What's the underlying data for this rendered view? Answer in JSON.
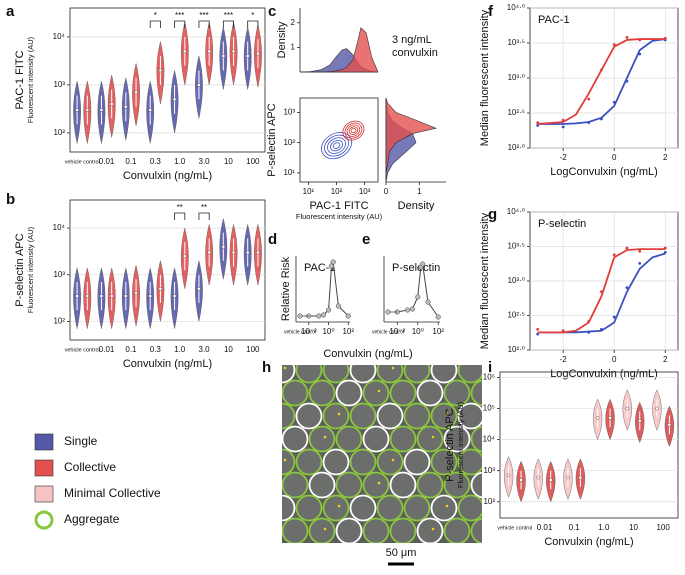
{
  "panel_letters": [
    "a",
    "b",
    "c",
    "d",
    "e",
    "f",
    "g",
    "h",
    "i"
  ],
  "legend": [
    {
      "name": "Single",
      "color": "#5558a8",
      "marker": "square"
    },
    {
      "name": "Collective",
      "color": "#e34f4f",
      "marker": "square"
    },
    {
      "name": "Minimal Collective",
      "color": "#f6c3c3",
      "marker": "square"
    },
    {
      "name": "Aggregate",
      "color": "#8cc63f",
      "marker": "ring"
    }
  ],
  "micrograph": {
    "scale_label": "50 μm"
  },
  "chart_data": [
    {
      "type": "violin",
      "ylabel": "PAC-1 FITC",
      "ysub": "Fluorescent intensity (AU)",
      "xlabel": "Convulxin (ng/mL)",
      "categories": [
        "vehicle control",
        "0.01",
        "0.1",
        "0.3",
        "1.0",
        "3.0",
        "10",
        "100"
      ],
      "series": [
        {
          "name": "Single",
          "color": "#5558a8",
          "values": [
            300,
            300,
            350,
            300,
            500,
            1000,
            4000,
            4000
          ]
        },
        {
          "name": "Collective",
          "color": "#e34f4f",
          "values": [
            300,
            400,
            700,
            2000,
            5000,
            5000,
            5000,
            4500
          ]
        }
      ],
      "ylog": true,
      "ylim": [
        40,
        40000
      ],
      "grid": true,
      "yticks": [
        {
          "value": 100,
          "label": "10²"
        },
        {
          "value": 1000,
          "label": "10³"
        },
        {
          "value": 10000,
          "label": "10⁴"
        }
      ],
      "annotations": [
        {
          "category": "0.3",
          "label": "*"
        },
        {
          "category": "1.0",
          "label": "***"
        },
        {
          "category": "3.0",
          "label": "***"
        },
        {
          "category": "10",
          "label": "***"
        },
        {
          "category": "100",
          "label": "*"
        }
      ]
    },
    {
      "type": "violin",
      "ylabel": "P-selectin APC",
      "ysub": "Fluorescent intensity (AU)",
      "xlabel": "Convulxin (ng/mL)",
      "categories": [
        "vehicle control",
        "0.01",
        "0.1",
        "0.3",
        "1.0",
        "3.0",
        "10",
        "100"
      ],
      "series": [
        {
          "name": "Single",
          "color": "#5558a8",
          "values": [
            350,
            350,
            350,
            350,
            350,
            500,
            4000,
            3000
          ]
        },
        {
          "name": "Collective",
          "color": "#e34f4f",
          "values": [
            350,
            350,
            400,
            500,
            2500,
            3000,
            3000,
            3000
          ]
        }
      ],
      "ylog": true,
      "ylim": [
        40,
        40000
      ],
      "grid": true,
      "yticks": [
        {
          "value": 100,
          "label": "10²"
        },
        {
          "value": 1000,
          "label": "10³"
        },
        {
          "value": 10000,
          "label": "10⁴"
        }
      ],
      "annotations": [
        {
          "category": "1.0",
          "label": "**"
        },
        {
          "category": "3.0",
          "label": "**"
        }
      ]
    },
    {
      "type": "density",
      "ylabel": "Density",
      "annotation": [
        "3 ng/mL",
        "convulxin"
      ],
      "x": [
        10,
        20,
        40,
        70,
        100,
        150,
        200,
        300,
        400,
        500,
        700,
        1000,
        1500
      ],
      "xlog": true,
      "xlim": [
        10,
        1500
      ],
      "ylim": [
        0,
        2.6
      ],
      "yticks": [
        1,
        2
      ],
      "series": [
        {
          "color": "#5558a8",
          "values": [
            0,
            0.02,
            0.1,
            0.3,
            0.6,
            0.9,
            0.95,
            0.7,
            0.4,
            0.2,
            0.1,
            0.03,
            0
          ]
        },
        {
          "color": "#e34f4f",
          "values": [
            0,
            0,
            0,
            0.02,
            0.05,
            0.1,
            0.2,
            0.5,
            1.2,
            1.8,
            1.6,
            0.6,
            0
          ]
        }
      ]
    },
    {
      "type": "contour",
      "ylabel": "P-selectin APC",
      "xlabel": "PAC-1 FITC",
      "xsub": "Fluorescent intensity (AU)",
      "xlog": true,
      "ylog": true,
      "xlim": [
        5,
        3000
      ],
      "ylim": [
        5,
        3000
      ],
      "xticks": [
        {
          "value": 10,
          "label": "10¹"
        },
        {
          "value": 100,
          "label": "10²"
        },
        {
          "value": 1000,
          "label": "10³"
        }
      ],
      "yticks": [
        {
          "value": 10,
          "label": "10¹"
        },
        {
          "value": 100,
          "label": "10²"
        },
        {
          "value": 1000,
          "label": "10³"
        }
      ],
      "series": [
        {
          "color": "#3a4fc0",
          "center": [
            100,
            80
          ]
        },
        {
          "color": "#d62f2f",
          "center": [
            400,
            250
          ]
        }
      ]
    },
    {
      "type": "density-h",
      "xlabel": "Density",
      "y": [
        5,
        10,
        20,
        50,
        100,
        200,
        300,
        500,
        1000,
        2000,
        3000
      ],
      "ylog": true,
      "ylim": [
        5,
        3000
      ],
      "xlim": [
        0,
        1.8
      ],
      "xticks": [
        0,
        1
      ],
      "series": [
        {
          "color": "#5558a8",
          "values": [
            0,
            0.05,
            0.2,
            0.6,
            0.9,
            0.8,
            0.5,
            0.2,
            0.05,
            0.01,
            0
          ]
        },
        {
          "color": "#e34f4f",
          "values": [
            0,
            0,
            0.05,
            0.1,
            0.3,
            0.8,
            1.5,
            1.0,
            0.3,
            0.05,
            0
          ]
        }
      ]
    },
    {
      "type": "line",
      "label": "PAC-1",
      "ylabel": "Relative Risk",
      "xlabel": "Convulxin (ng/mL)",
      "control_label": "vehicle control",
      "control_value": 3,
      "x": [
        0.01,
        0.1,
        0.3,
        1,
        2,
        3,
        10,
        100
      ],
      "values": [
        3,
        3,
        3.5,
        6,
        28,
        30,
        8,
        3
      ],
      "xlog": true,
      "xlim": [
        0.0005,
        150
      ],
      "ylim": [
        0,
        33
      ],
      "color": "#444444",
      "xticks": [
        {
          "value": 0.01,
          "label": "10⁻²"
        },
        {
          "value": 1,
          "label": "10⁰"
        },
        {
          "value": 100,
          "label": "10²"
        }
      ]
    },
    {
      "type": "line",
      "label": "P-selectin",
      "control_label": "vehicle control",
      "control_value": 1,
      "x": [
        0.01,
        0.1,
        0.3,
        1,
        2,
        3,
        10,
        100
      ],
      "values": [
        1,
        1.2,
        1.3,
        2.5,
        5.5,
        5.8,
        2,
        0.5
      ],
      "xlog": true,
      "xlim": [
        0.0005,
        150
      ],
      "ylim": [
        0,
        6.6
      ],
      "color": "#444444",
      "xticks": [
        {
          "value": 0.01,
          "label": "10⁻²"
        },
        {
          "value": 1,
          "label": "10⁰"
        },
        {
          "value": 100,
          "label": "10²"
        }
      ]
    },
    {
      "type": "curve",
      "label": "PAC-1",
      "ylabel": "Median fluorescent intensity",
      "xlabel": "LogConvulxin (ng/mL)",
      "x": [
        -3,
        -2,
        -1.5,
        -1,
        -0.5,
        0,
        0.5,
        1,
        1.5,
        2
      ],
      "ylog": true,
      "ylim": [
        100,
        10000
      ],
      "xlim": [
        -3.3,
        2.5
      ],
      "xticks": [
        -2,
        0,
        2
      ],
      "grid": true,
      "yticks": [
        {
          "value": 100,
          "label": "10²·⁰"
        },
        {
          "value": 316.2,
          "label": "10²·⁵"
        },
        {
          "value": 1000,
          "label": "10³·⁰"
        },
        {
          "value": 3162,
          "label": "10³·⁵"
        },
        {
          "value": 10000,
          "label": "10⁴·⁰"
        }
      ],
      "series": [
        {
          "color": "#3a4fc0",
          "values": [
            220,
            220,
            225,
            235,
            270,
            400,
            1000,
            2500,
            3400,
            3600
          ],
          "points": {
            "x": [
              -3,
              -2,
              -1,
              -0.5,
              0,
              0.5,
              1,
              2
            ],
            "values": [
              210,
              200,
              230,
              260,
              450,
              900,
              2200,
              3500
            ]
          }
        },
        {
          "color": "#e23b3b",
          "values": [
            220,
            235,
            300,
            600,
            1300,
            2800,
            3500,
            3600,
            3600,
            3600
          ],
          "points": {
            "x": [
              -3,
              -2,
              -1,
              -0.5,
              0,
              0.5,
              1,
              2
            ],
            "values": [
              230,
              250,
              500,
              1300,
              3000,
              3800,
              3500,
              3700
            ]
          }
        }
      ]
    },
    {
      "type": "curve",
      "label": "P-selectin",
      "ylabel": "Median fluorescent intensity",
      "xlabel": "LogConvulxin (ng/mL)",
      "x": [
        -3,
        -2,
        -1.5,
        -1,
        -0.5,
        0,
        0.5,
        1,
        1.5,
        2
      ],
      "ylog": true,
      "ylim": [
        100,
        10000
      ],
      "xlim": [
        -3.3,
        2.5
      ],
      "xticks": [
        -2,
        0,
        2
      ],
      "grid": true,
      "yticks": [
        {
          "value": 100,
          "label": "10²·⁰"
        },
        {
          "value": 316.2,
          "label": "10²·⁵"
        },
        {
          "value": 1000,
          "label": "10³·⁰"
        },
        {
          "value": 3162,
          "label": "10³·⁵"
        },
        {
          "value": 10000,
          "label": "10⁴·⁰"
        }
      ],
      "series": [
        {
          "color": "#3a4fc0",
          "values": [
            180,
            180,
            180,
            185,
            190,
            250,
            700,
            1500,
            2200,
            2500
          ],
          "points": {
            "x": [
              -3,
              -2,
              -1,
              -0.5,
              0,
              0.5,
              1,
              2
            ],
            "values": [
              170,
              190,
              180,
              200,
              300,
              800,
              1800,
              2600
            ]
          }
        },
        {
          "color": "#e23b3b",
          "values": [
            180,
            180,
            190,
            250,
            600,
            2200,
            2800,
            2900,
            2900,
            2900
          ],
          "points": {
            "x": [
              -3,
              -2,
              -1,
              -0.5,
              0,
              0.5,
              1,
              2
            ],
            "values": [
              200,
              190,
              260,
              700,
              2400,
              3000,
              2700,
              3000
            ]
          }
        }
      ]
    },
    {
      "type": "violin",
      "ylabel": "P-selectin APC",
      "ysub": "Fluorescent intensity (AU)",
      "xlabel": "Convulxin (ng/mL)",
      "categories": [
        "vehicle control",
        "0.01",
        "0.1",
        "1.0",
        "10",
        "100"
      ],
      "series": [
        {
          "name": "Minimal Collective",
          "color": "#f6c3c3",
          "values": [
            700,
            600,
            600,
            50000,
            100000,
            100000
          ]
        },
        {
          "name": "Collective",
          "color": "#d94a4a",
          "values": [
            500,
            500,
            600,
            50000,
            40000,
            30000
          ]
        }
      ],
      "ylog": true,
      "ylim": [
        30,
        1500000
      ],
      "grid": true,
      "yticks": [
        {
          "value": 100,
          "label": "10²"
        },
        {
          "value": 1000,
          "label": "10³"
        },
        {
          "value": 10000,
          "label": "10⁴"
        },
        {
          "value": 100000,
          "label": "10⁵"
        },
        {
          "value": 1000000,
          "label": "10⁶"
        }
      ]
    }
  ]
}
